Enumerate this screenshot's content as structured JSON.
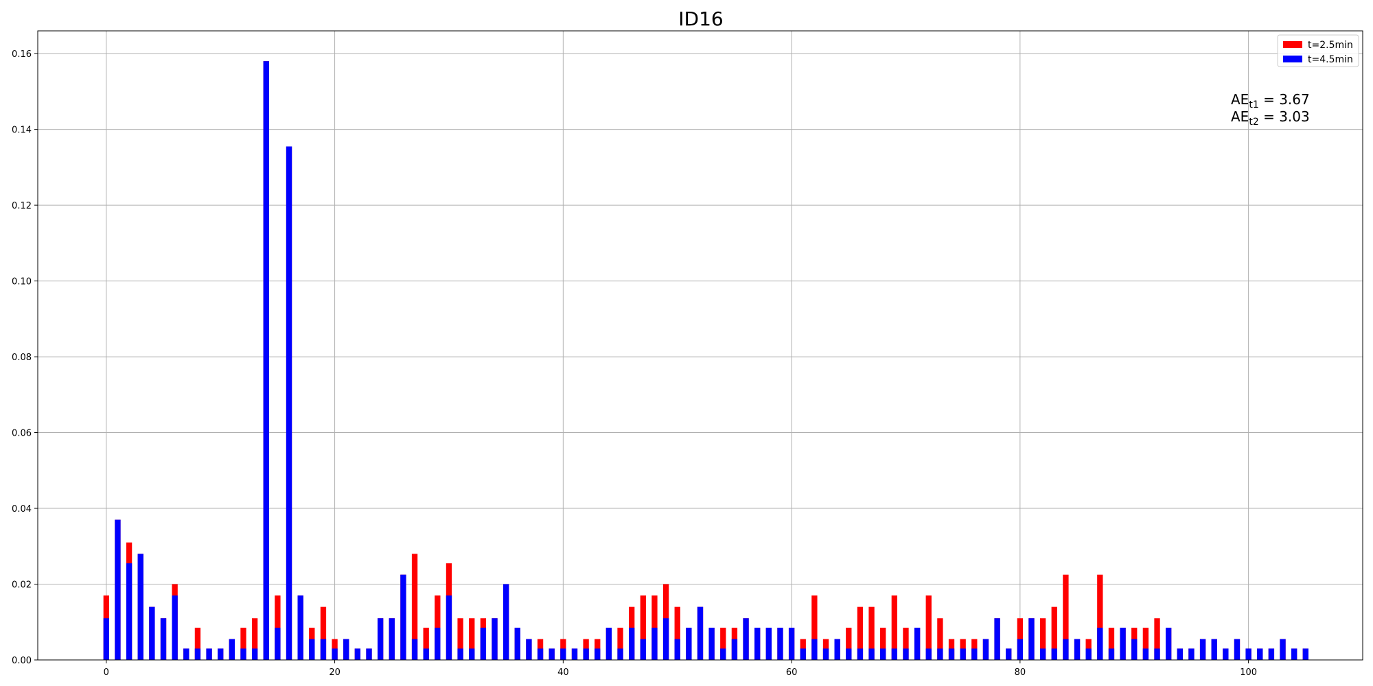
{
  "chart_data": {
    "type": "bar",
    "title": "ID16",
    "xlabel": "",
    "ylabel": "",
    "xlim": [
      -6,
      110
    ],
    "ylim": [
      0,
      0.166
    ],
    "xticks": [
      0,
      20,
      40,
      60,
      80,
      100
    ],
    "yticks": [
      0.0,
      0.02,
      0.04,
      0.06,
      0.08,
      0.1,
      0.12,
      0.14,
      0.16
    ],
    "grid": true,
    "legend_position": "top-right",
    "bar_width": 0.5,
    "series": [
      {
        "name": "t=2.5min",
        "color": "#ff0000",
        "values": [
          0.017,
          0.037,
          0.031,
          0.028,
          0.014,
          0.011,
          0.02,
          0.003,
          0.0085,
          0.003,
          0.003,
          0.0055,
          0.0085,
          0.011,
          0.158,
          0.017,
          0.1355,
          0.017,
          0.0085,
          0.014,
          0.0055,
          0.0055,
          0.003,
          0.003,
          0.011,
          0.011,
          0.0225,
          0.028,
          0.0085,
          0.017,
          0.0255,
          0.011,
          0.011,
          0.011,
          0.011,
          0.02,
          0.0085,
          0.0055,
          0.0055,
          0.003,
          0.0055,
          0.003,
          0.0055,
          0.0055,
          0.0085,
          0.0085,
          0.014,
          0.017,
          0.017,
          0.02,
          0.014,
          0.0085,
          0.014,
          0.0085,
          0.0085,
          0.0085,
          0.011,
          0.0085,
          0.0085,
          0.0085,
          0.0085,
          0.0055,
          0.017,
          0.0055,
          0.0055,
          0.0085,
          0.014,
          0.014,
          0.0085,
          0.017,
          0.0085,
          0.0085,
          0.017,
          0.011,
          0.0055,
          0.0055,
          0.0055,
          0.0055,
          0.011,
          0.003,
          0.011,
          0.011,
          0.011,
          0.014,
          0.0225,
          0.0055,
          0.0055,
          0.0225,
          0.0085,
          0.0085,
          0.0085,
          0.0085,
          0.011,
          0.0085,
          0.003,
          0.003,
          0.0055,
          0.0055,
          0.003,
          0.0055,
          0.003,
          0.003,
          0.003,
          0.0055,
          0.003,
          0.003
        ]
      },
      {
        "name": "t=4.5min",
        "color": "#0000ff",
        "values": [
          0.011,
          0.037,
          0.0255,
          0.028,
          0.014,
          0.011,
          0.017,
          0.003,
          0.003,
          0.003,
          0.003,
          0.0055,
          0.003,
          0.003,
          0.158,
          0.0085,
          0.1355,
          0.017,
          0.0055,
          0.0055,
          0.003,
          0.0055,
          0.003,
          0.003,
          0.011,
          0.011,
          0.0225,
          0.0055,
          0.003,
          0.0085,
          0.017,
          0.003,
          0.003,
          0.0085,
          0.011,
          0.02,
          0.0085,
          0.0055,
          0.003,
          0.003,
          0.003,
          0.003,
          0.003,
          0.003,
          0.0085,
          0.003,
          0.0085,
          0.0055,
          0.0085,
          0.011,
          0.0055,
          0.0085,
          0.014,
          0.0085,
          0.003,
          0.0055,
          0.011,
          0.0085,
          0.0085,
          0.0085,
          0.0085,
          0.003,
          0.0055,
          0.003,
          0.0055,
          0.003,
          0.003,
          0.003,
          0.003,
          0.003,
          0.003,
          0.0085,
          0.003,
          0.003,
          0.003,
          0.003,
          0.003,
          0.0055,
          0.011,
          0.003,
          0.0055,
          0.011,
          0.003,
          0.003,
          0.0055,
          0.0055,
          0.003,
          0.0085,
          0.003,
          0.0085,
          0.0055,
          0.003,
          0.003,
          0.0085,
          0.003,
          0.003,
          0.0055,
          0.0055,
          0.003,
          0.0055,
          0.003,
          0.003,
          0.003,
          0.0055,
          0.003,
          0.003
        ]
      }
    ],
    "annotations": [
      {
        "base": "AE",
        "sub": "t1",
        "rest": " = 3.67"
      },
      {
        "base": "AE",
        "sub": "t2",
        "rest": " = 3.03"
      }
    ]
  },
  "colors": {
    "grid": "#b0b0b0",
    "axis": "#000000",
    "legend_border": "#cccccc"
  }
}
